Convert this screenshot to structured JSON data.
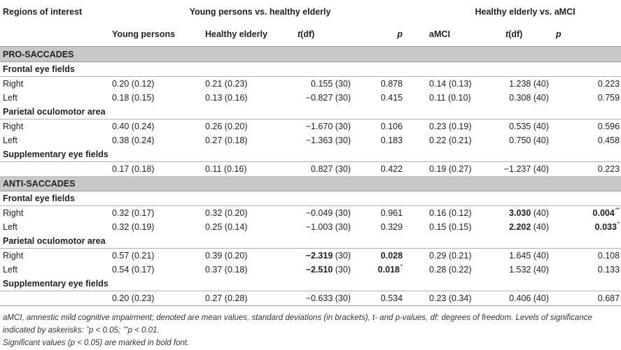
{
  "header": {
    "regions_label": "Regions of interest",
    "group1": "Young persons vs. healthy elderly",
    "group2": "Healthy elderly vs. aMCI",
    "cols": [
      "Young persons",
      "Healthy elderly",
      "t",
      "(df)",
      "p",
      "aMCI",
      "t",
      "(df)",
      "p"
    ]
  },
  "sections": [
    {
      "title": "PRO-SACCADES",
      "regions": [
        {
          "name": "Frontal eye fields",
          "rows": [
            {
              "label": "Right",
              "young": "0.20 (0.12)",
              "elderly": "0.21 (0.23)",
              "t1": "0.155 (30)",
              "p1": "0.878",
              "amci": "0.14 (0.13)",
              "t2": "1.238 (40)",
              "p2": "0.223"
            },
            {
              "label": "Left",
              "young": "0.18 (0.15)",
              "elderly": "0.13 (0.16)",
              "t1": "−0.827 (30)",
              "p1": "0.415",
              "amci": "0.11 (0.10)",
              "t2": "0.308 (40)",
              "p2": "0.759"
            }
          ]
        },
        {
          "name": "Parietal oculomotor area",
          "rows": [
            {
              "label": "Right",
              "young": "0.40 (0.24)",
              "elderly": "0.26 (0.20)",
              "t1": "−1.670 (30)",
              "p1": "0.106",
              "amci": "0.23 (0.19)",
              "t2": "0.535 (40)",
              "p2": "0.596"
            },
            {
              "label": "Left",
              "young": "0.38 (0.24)",
              "elderly": "0.27 (0.18)",
              "t1": "−1.363 (30)",
              "p1": "0.183",
              "amci": "0.22 (0.21)",
              "t2": "0.750 (40)",
              "p2": "0.458"
            }
          ]
        },
        {
          "name": "Supplementary eye fields",
          "rows": [
            {
              "label": "",
              "young": "0.17 (0.18)",
              "elderly": "0.11 (0.16)",
              "t1": "0.827 (30)",
              "p1": "0.422",
              "amci": "0.19 (0.27)",
              "t2": "−1.237 (40)",
              "p2": "0.223"
            }
          ]
        }
      ]
    },
    {
      "title": "ANTI-SACCADES",
      "regions": [
        {
          "name": "Frontal eye fields",
          "rows": [
            {
              "label": "Right",
              "young": "0.32 (0.17)",
              "elderly": "0.32 (0.20)",
              "t1": "−0.049 (30)",
              "p1": "0.961",
              "amci": "0.16 (0.12)",
              "t2_bold": "3.030",
              "t2_df": "(40)",
              "p2_bold": "0.004",
              "p2_sup": "**"
            },
            {
              "label": "Left",
              "young": "0.32 (0.19)",
              "elderly": "0.25 (0.14)",
              "t1": "−1.003 (30)",
              "p1": "0.329",
              "amci": "0.15 (0.15)",
              "t2_bold": "2.202",
              "t2_df": "(40)",
              "p2_bold": "0.033",
              "p2_sup": "*"
            }
          ]
        },
        {
          "name": "Parietal oculomotor area",
          "rows": [
            {
              "label": "Right",
              "young": "0.57 (0.21)",
              "elderly": "0.39 (0.20)",
              "t1_bold": "−2.319",
              "t1_df": "(30)",
              "p1_bold": "0.028",
              "amci": "0.29 (0.21)",
              "t2": "1.645 (40)",
              "p2": "0.108"
            },
            {
              "label": "Left",
              "young": "0.54 (0.17)",
              "elderly": "0.37 (0.18)",
              "t1_bold": "−2.510",
              "t1_df": "(30)",
              "p1_bold": "0.018",
              "p1_sup": "*",
              "amci": "0.28 (0.22)",
              "t2": "1.532 (40)",
              "p2": "0.133"
            }
          ]
        },
        {
          "name": "Supplementary eye fields",
          "rows": [
            {
              "label": "",
              "young": "0.20 (0.23)",
              "elderly": "0.27 (0.28)",
              "t1": "−0.633 (30)",
              "p1": "0.534",
              "amci": "0.23 (0.34)",
              "t2": "0.406 (40)",
              "p2": "0.687"
            }
          ]
        }
      ]
    }
  ],
  "notes": {
    "line1": "aMCI, amnestic mild cognitive impairment; denoted are mean values, standard deviations (in brackets), t- and p-values, df: degrees of freedom. Levels of significance",
    "line2_a": "indicated by askerisks: ",
    "line2_sig1_mark": "*",
    "line2_sig1": "p < 0.05; ",
    "line2_sig2_mark": "**",
    "line2_sig2": "p < 0.01.",
    "line3": "Significant values (p < 0.05) are marked in bold font."
  }
}
